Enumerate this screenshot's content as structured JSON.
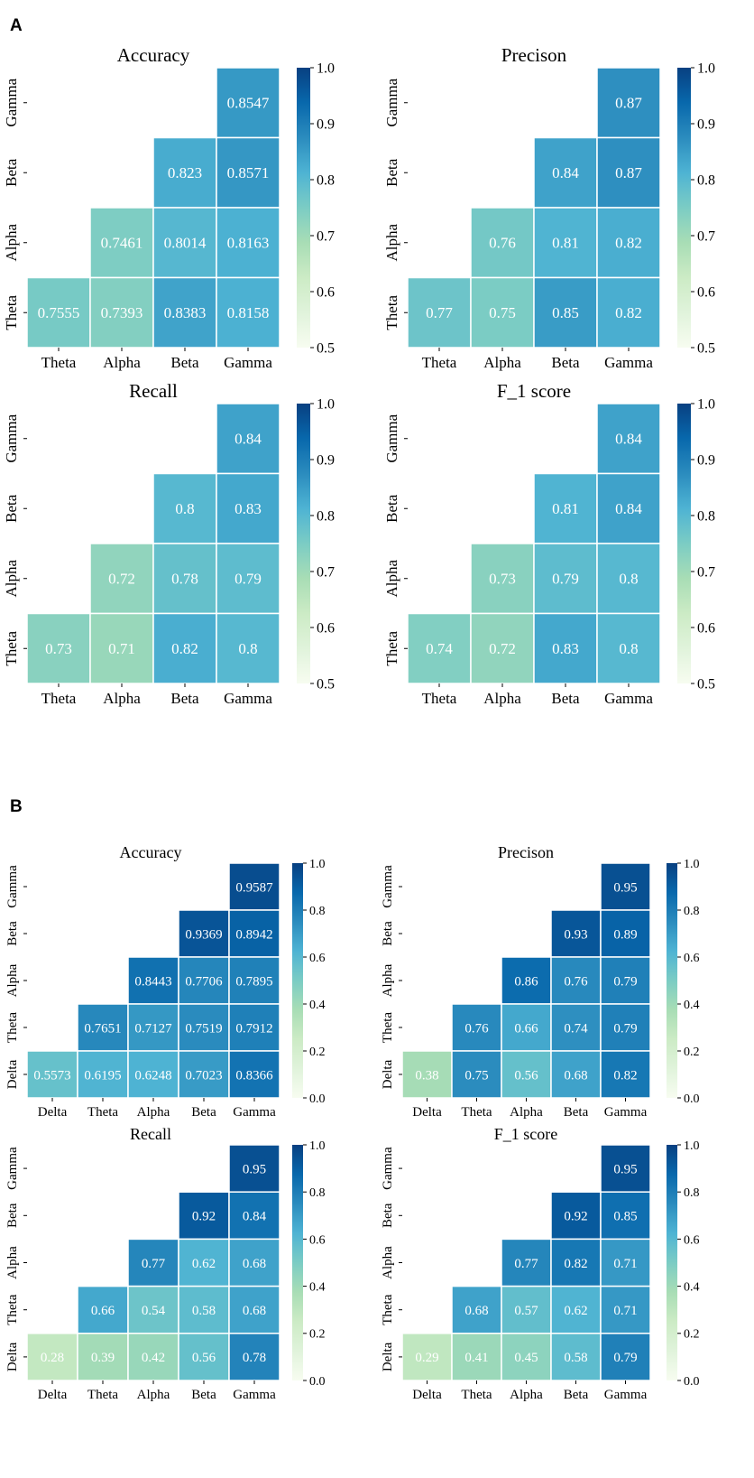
{
  "panels": [
    {
      "label": "A",
      "colorbar_ticks": [
        "0.5",
        "0.6",
        "0.7",
        "0.8",
        "0.9",
        "1.0"
      ],
      "vmin": 0.5,
      "vmax": 1.0,
      "axis_labels": [
        "Theta",
        "Alpha",
        "Beta",
        "Gamma"
      ]
    },
    {
      "label": "B",
      "colorbar_ticks": [
        "0.0",
        "0.2",
        "0.4",
        "0.6",
        "0.8",
        "1.0"
      ],
      "vmin": 0.0,
      "vmax": 1.0,
      "axis_labels": [
        "Delta",
        "Theta",
        "Alpha",
        "Beta",
        "Gamma"
      ]
    }
  ],
  "chart_data": [
    {
      "type": "heatmap",
      "panel": "A",
      "title": "Accuracy",
      "x_labels": [
        "Theta",
        "Alpha",
        "Beta",
        "Gamma"
      ],
      "y_labels": [
        "Gamma",
        "Beta",
        "Alpha",
        "Theta"
      ],
      "values": [
        [
          null,
          null,
          null,
          "0.8547"
        ],
        [
          null,
          null,
          "0.823",
          "0.8571"
        ],
        [
          null,
          "0.7461",
          "0.8014",
          "0.8163"
        ],
        [
          "0.7555",
          "0.7393",
          "0.8383",
          "0.8158"
        ]
      ],
      "vmin": 0.5,
      "vmax": 1.0
    },
    {
      "type": "heatmap",
      "panel": "A",
      "title": "Precison",
      "x_labels": [
        "Theta",
        "Alpha",
        "Beta",
        "Gamma"
      ],
      "y_labels": [
        "Gamma",
        "Beta",
        "Alpha",
        "Theta"
      ],
      "values": [
        [
          null,
          null,
          null,
          "0.87"
        ],
        [
          null,
          null,
          "0.84",
          "0.87"
        ],
        [
          null,
          "0.76",
          "0.81",
          "0.82"
        ],
        [
          "0.77",
          "0.75",
          "0.85",
          "0.82"
        ]
      ],
      "vmin": 0.5,
      "vmax": 1.0
    },
    {
      "type": "heatmap",
      "panel": "A",
      "title": "Recall",
      "x_labels": [
        "Theta",
        "Alpha",
        "Beta",
        "Gamma"
      ],
      "y_labels": [
        "Gamma",
        "Beta",
        "Alpha",
        "Theta"
      ],
      "values": [
        [
          null,
          null,
          null,
          "0.84"
        ],
        [
          null,
          null,
          "0.8",
          "0.83"
        ],
        [
          null,
          "0.72",
          "0.78",
          "0.79"
        ],
        [
          "0.73",
          "0.71",
          "0.82",
          "0.8"
        ]
      ],
      "vmin": 0.5,
      "vmax": 1.0
    },
    {
      "type": "heatmap",
      "panel": "A",
      "title": "F_1 score",
      "x_labels": [
        "Theta",
        "Alpha",
        "Beta",
        "Gamma"
      ],
      "y_labels": [
        "Gamma",
        "Beta",
        "Alpha",
        "Theta"
      ],
      "values": [
        [
          null,
          null,
          null,
          "0.84"
        ],
        [
          null,
          null,
          "0.81",
          "0.84"
        ],
        [
          null,
          "0.73",
          "0.79",
          "0.8"
        ],
        [
          "0.74",
          "0.72",
          "0.83",
          "0.8"
        ]
      ],
      "vmin": 0.5,
      "vmax": 1.0
    },
    {
      "type": "heatmap",
      "panel": "B",
      "title": "Accuracy",
      "x_labels": [
        "Delta",
        "Theta",
        "Alpha",
        "Beta",
        "Gamma"
      ],
      "y_labels": [
        "Gamma",
        "Beta",
        "Alpha",
        "Theta",
        "Delta"
      ],
      "values": [
        [
          null,
          null,
          null,
          null,
          "0.9587"
        ],
        [
          null,
          null,
          null,
          "0.9369",
          "0.8942"
        ],
        [
          null,
          null,
          "0.8443",
          "0.7706",
          "0.7895"
        ],
        [
          null,
          "0.7651",
          "0.7127",
          "0.7519",
          "0.7912"
        ],
        [
          "0.5573",
          "0.6195",
          "0.6248",
          "0.7023",
          "0.8366"
        ]
      ],
      "vmin": 0.0,
      "vmax": 1.0
    },
    {
      "type": "heatmap",
      "panel": "B",
      "title": "Precison",
      "x_labels": [
        "Delta",
        "Theta",
        "Alpha",
        "Beta",
        "Gamma"
      ],
      "y_labels": [
        "Gamma",
        "Beta",
        "Alpha",
        "Theta",
        "Delta"
      ],
      "values": [
        [
          null,
          null,
          null,
          null,
          "0.95"
        ],
        [
          null,
          null,
          null,
          "0.93",
          "0.89"
        ],
        [
          null,
          null,
          "0.86",
          "0.76",
          "0.79"
        ],
        [
          null,
          "0.76",
          "0.66",
          "0.74",
          "0.79"
        ],
        [
          "0.38",
          "0.75",
          "0.56",
          "0.68",
          "0.82"
        ]
      ],
      "vmin": 0.0,
      "vmax": 1.0
    },
    {
      "type": "heatmap",
      "panel": "B",
      "title": "Recall",
      "x_labels": [
        "Delta",
        "Theta",
        "Alpha",
        "Beta",
        "Gamma"
      ],
      "y_labels": [
        "Gamma",
        "Beta",
        "Alpha",
        "Theta",
        "Delta"
      ],
      "values": [
        [
          null,
          null,
          null,
          null,
          "0.95"
        ],
        [
          null,
          null,
          null,
          "0.92",
          "0.84"
        ],
        [
          null,
          null,
          "0.77",
          "0.62",
          "0.68"
        ],
        [
          null,
          "0.66",
          "0.54",
          "0.58",
          "0.68"
        ],
        [
          "0.28",
          "0.39",
          "0.42",
          "0.56",
          "0.78"
        ]
      ],
      "vmin": 0.0,
      "vmax": 1.0
    },
    {
      "type": "heatmap",
      "panel": "B",
      "title": "F_1 score",
      "x_labels": [
        "Delta",
        "Theta",
        "Alpha",
        "Beta",
        "Gamma"
      ],
      "y_labels": [
        "Gamma",
        "Beta",
        "Alpha",
        "Theta",
        "Delta"
      ],
      "values": [
        [
          null,
          null,
          null,
          null,
          "0.95"
        ],
        [
          null,
          null,
          null,
          "0.92",
          "0.85"
        ],
        [
          null,
          null,
          "0.77",
          "0.82",
          "0.71"
        ],
        [
          null,
          "0.68",
          "0.57",
          "0.62",
          "0.71"
        ],
        [
          "0.29",
          "0.41",
          "0.45",
          "0.58",
          "0.79"
        ]
      ],
      "vmin": 0.0,
      "vmax": 1.0
    }
  ]
}
